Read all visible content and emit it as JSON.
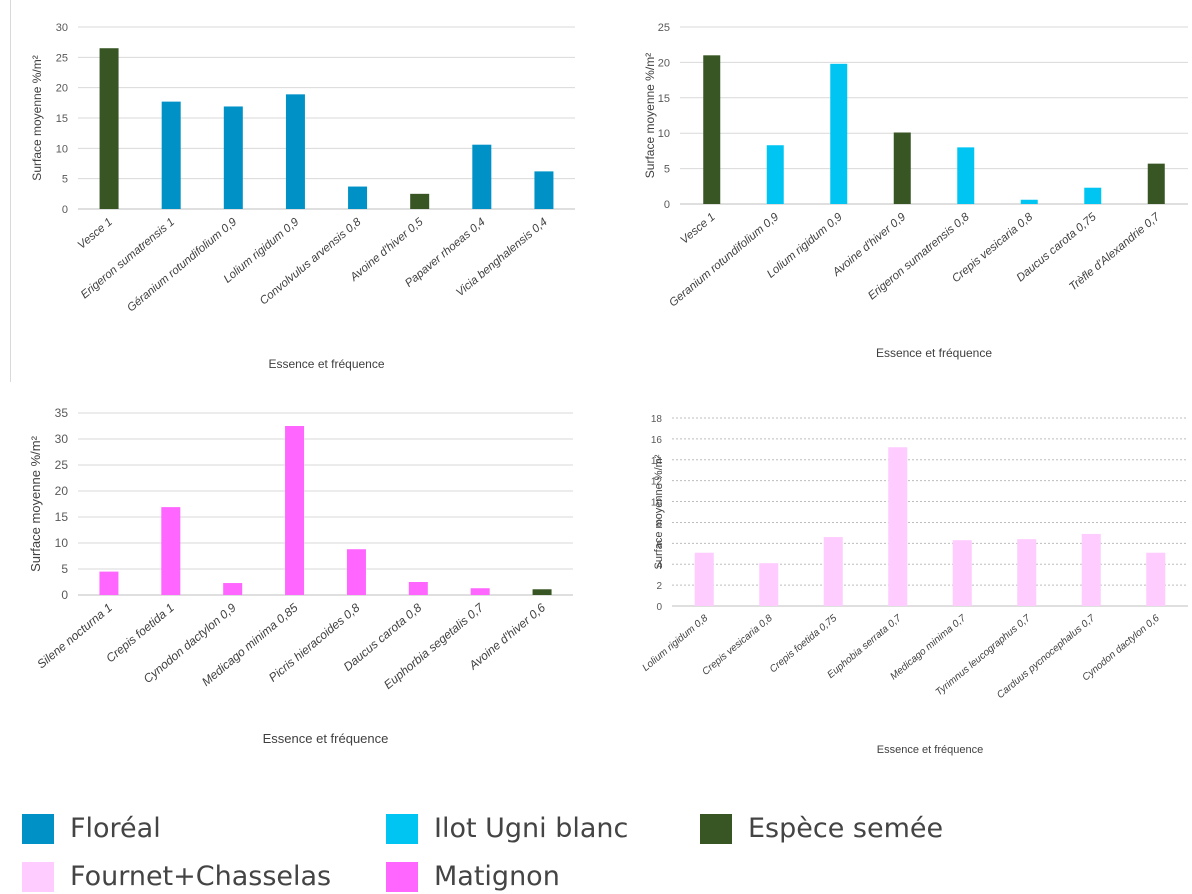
{
  "chart_data": [
    {
      "type": "bar",
      "site": "Floréal",
      "categories": [
        "Vesce 1",
        "Erigeron sumatrensis 1",
        "Géranium rotundifolium 0,9",
        "Lolium rigidum 0,9",
        "Convolvulus arvensis  0,8",
        "Avoine d'hiver 0,5",
        "Papaver rhoeas 0,4",
        "Vicia benghalensis 0,4"
      ],
      "values": [
        26.5,
        17.7,
        16.9,
        18.9,
        3.7,
        2.5,
        10.6,
        6.2
      ],
      "bar_colors": [
        "#375623",
        "#0092c6",
        "#0092c6",
        "#0092c6",
        "#0092c6",
        "#375623",
        "#0092c6",
        "#0092c6"
      ],
      "ylim": [
        0,
        30
      ],
      "yticks": [
        0,
        5,
        10,
        15,
        20,
        25,
        30
      ],
      "xlabel": "Essence et fréquence",
      "ylabel": "Surface moyenne %/m²",
      "grid": true
    },
    {
      "type": "bar",
      "site": "Ilot Ugni blanc",
      "categories": [
        "Vesce 1",
        "Geranium rotundifolium 0,9",
        "Lolium rigidum 0,9",
        "Avoine d'hiver 0,9",
        "Erigeron sumatrensis 0,8",
        "Crepis vesicaria 0,8",
        "Daucus carota 0,75",
        "Trèfle d'Alexandrie 0,7"
      ],
      "values": [
        21.0,
        8.3,
        19.8,
        10.1,
        8.0,
        0.6,
        2.3,
        5.7
      ],
      "bar_colors": [
        "#375623",
        "#00c5f2",
        "#00c5f2",
        "#375623",
        "#00c5f2",
        "#00c5f2",
        "#00c5f2",
        "#375623"
      ],
      "ylim": [
        0,
        25
      ],
      "yticks": [
        0,
        5,
        10,
        15,
        20,
        25
      ],
      "xlabel": "Essence et fréquence",
      "ylabel": "Surface moyenne %/m²",
      "grid": true
    },
    {
      "type": "bar",
      "site": "Matignon",
      "categories": [
        "Silene nocturna 1",
        "Crepis foetida 1",
        "Cynodon dactylon 0,9",
        "Medicago minima 0,85",
        "Picris hieracoides 0,8",
        "Daucus carota 0,8",
        "Euphorbia segetalis 0,7",
        "Avoine d'hiver 0,6"
      ],
      "values": [
        4.5,
        16.9,
        2.3,
        32.5,
        8.8,
        2.5,
        1.3,
        1.1
      ],
      "bar_colors": [
        "#ff66ff",
        "#ff66ff",
        "#ff66ff",
        "#ff66ff",
        "#ff66ff",
        "#ff66ff",
        "#ff66ff",
        "#375623"
      ],
      "ylim": [
        0,
        35
      ],
      "yticks": [
        0,
        5,
        10,
        15,
        20,
        25,
        30,
        35
      ],
      "xlabel": "Essence et fréquence",
      "ylabel": "Surface moyenne %/m²",
      "grid": true
    },
    {
      "type": "bar",
      "site": "Fournet+Chasselas",
      "categories": [
        "Lolium rigidum 0,8",
        "Crepis vesicaria 0,8",
        "Crepis foetida 0,75",
        "Euphobia serrata 0,7",
        "Medicago minima 0,7",
        "Tyrimnus leucographus 0,7",
        "Carduus pycnocephalus 0,7",
        "Cynodon dactylon 0,6"
      ],
      "values": [
        5.1,
        4.1,
        6.6,
        15.2,
        6.3,
        6.4,
        6.9,
        5.1
      ],
      "bar_colors": [
        "#ffccff",
        "#ffccff",
        "#ffccff",
        "#ffccff",
        "#ffccff",
        "#ffccff",
        "#ffccff",
        "#ffccff"
      ],
      "ylim": [
        0,
        18
      ],
      "yticks": [
        0,
        2,
        4,
        6,
        8,
        10,
        12,
        14,
        16,
        18
      ],
      "xlabel": "Essence et fréquence",
      "ylabel": "Surface moyenne %/m²",
      "grid": true
    }
  ],
  "legend": [
    {
      "label": "Floréal",
      "color": "#0092c6"
    },
    {
      "label": "Ilot Ugni blanc",
      "color": "#00c5f2"
    },
    {
      "label": "Espèce semée",
      "color": "#375623"
    },
    {
      "label": "Fournet+Chasselas",
      "color": "#ffccff"
    },
    {
      "label": "Matignon",
      "color": "#ff66ff"
    }
  ]
}
